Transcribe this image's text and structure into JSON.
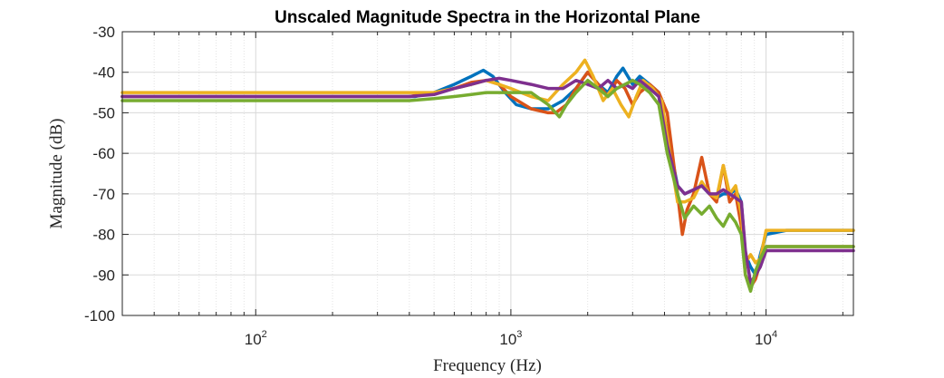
{
  "chart_data": {
    "type": "line",
    "title": "Unscaled Magnitude Spectra in the Horizontal Plane",
    "xlabel": "Frequency (Hz)",
    "ylabel": "Magnitude (dB)",
    "xscale": "log",
    "xlim": [
      30,
      22000
    ],
    "ylim": [
      -100,
      -30
    ],
    "grid": true,
    "minor_grid": true,
    "yticks": [
      -30,
      -40,
      -50,
      -60,
      -70,
      -80,
      -90,
      -100
    ],
    "ytick_labels": [
      "-30",
      "-40",
      "-50",
      "-60",
      "-70",
      "-80",
      "-90",
      "-100"
    ],
    "xticks": [
      {
        "value": 100,
        "base": "10",
        "exp": "2"
      },
      {
        "value": 1000,
        "base": "10",
        "exp": "3"
      },
      {
        "value": 10000,
        "base": "10",
        "exp": "4"
      }
    ],
    "series": [
      {
        "color": "#0072BD",
        "x": [
          30,
          300,
          420,
          500,
          600,
          700,
          780,
          850,
          950,
          1050,
          1200,
          1400,
          1600,
          1800,
          2000,
          2200,
          2400,
          2600,
          2750,
          3000,
          3200,
          3500,
          3800,
          4100,
          4500,
          4800,
          5200,
          5600,
          6000,
          6400,
          6800,
          7200,
          7600,
          8000,
          8300,
          8700,
          9100,
          9500,
          10000,
          12000,
          22000
        ],
        "y": [
          -46,
          -46,
          -46,
          -45,
          -43,
          -41,
          -39.5,
          -41,
          -45,
          -48,
          -49,
          -49,
          -47,
          -44,
          -40,
          -43,
          -45,
          -41,
          -39,
          -43,
          -41,
          -43,
          -45,
          -55,
          -68,
          -70,
          -69,
          -68,
          -70,
          -71,
          -70,
          -70,
          -69,
          -72,
          -85,
          -88,
          -90,
          -85,
          -80,
          -79,
          -79
        ]
      },
      {
        "color": "#D95319",
        "x": [
          30,
          400,
          500,
          600,
          700,
          800,
          900,
          1000,
          1200,
          1400,
          1500,
          1650,
          1800,
          2000,
          2200,
          2400,
          2600,
          2800,
          3000,
          3200,
          3500,
          3800,
          4100,
          4500,
          4700,
          4900,
          5200,
          5600,
          6000,
          6400,
          6800,
          7200,
          7600,
          8000,
          8300,
          8700,
          9100,
          9500,
          10000,
          12000,
          22000
        ],
        "y": [
          -46,
          -46,
          -45,
          -44,
          -42.5,
          -42,
          -43,
          -46,
          -49,
          -50,
          -50,
          -48,
          -44,
          -40,
          -43,
          -46,
          -42,
          -44,
          -48,
          -45,
          -43,
          -45,
          -50,
          -70,
          -80,
          -74,
          -70,
          -61,
          -70,
          -72,
          -63,
          -72,
          -70,
          -78,
          -90,
          -93,
          -91,
          -87,
          -83,
          -83,
          -83
        ]
      },
      {
        "color": "#EDB120",
        "x": [
          30,
          400,
          500,
          600,
          700,
          800,
          900,
          1000,
          1200,
          1400,
          1600,
          1800,
          1950,
          2100,
          2300,
          2500,
          2700,
          2900,
          3100,
          3300,
          3600,
          3900,
          4200,
          4500,
          4800,
          5200,
          5600,
          6000,
          6400,
          6800,
          7200,
          7600,
          8000,
          8300,
          8700,
          9100,
          9500,
          10000,
          12000,
          22000
        ],
        "y": [
          -45,
          -45,
          -45,
          -44,
          -43,
          -42,
          -43,
          -44,
          -46,
          -47,
          -43,
          -40,
          -37,
          -41,
          -47,
          -44,
          -48,
          -51,
          -46,
          -42,
          -44,
          -47,
          -60,
          -72,
          -72,
          -71,
          -67,
          -70,
          -71,
          -63,
          -70,
          -68,
          -75,
          -87,
          -85,
          -87,
          -86,
          -79,
          -79,
          -79
        ]
      },
      {
        "color": "#7E2F8E",
        "x": [
          30,
          400,
          500,
          600,
          700,
          800,
          900,
          1000,
          1200,
          1400,
          1600,
          1800,
          2000,
          2200,
          2400,
          2600,
          2800,
          3000,
          3200,
          3500,
          3800,
          4100,
          4500,
          4800,
          5200,
          5600,
          6000,
          6400,
          6800,
          7200,
          7600,
          8000,
          8300,
          8700,
          9100,
          9500,
          10000,
          12000,
          22000
        ],
        "y": [
          -46,
          -46,
          -45.5,
          -44,
          -43,
          -42,
          -41.5,
          -42,
          -43,
          -44,
          -44,
          -42,
          -43,
          -44,
          -42,
          -44,
          -43,
          -44,
          -42,
          -44,
          -46,
          -58,
          -68,
          -70,
          -69,
          -68,
          -70,
          -70,
          -69,
          -70,
          -71,
          -72,
          -84,
          -92,
          -90,
          -88,
          -84,
          -84,
          -84
        ]
      },
      {
        "color": "#77AC30",
        "x": [
          30,
          400,
          500,
          600,
          700,
          800,
          900,
          1000,
          1200,
          1400,
          1550,
          1650,
          1800,
          2000,
          2200,
          2400,
          2600,
          2800,
          3000,
          3200,
          3500,
          3800,
          4100,
          4500,
          4800,
          5200,
          5600,
          6000,
          6400,
          6800,
          7200,
          7600,
          8000,
          8300,
          8700,
          9100,
          9500,
          10000,
          12000,
          22000
        ],
        "y": [
          -47,
          -47,
          -46.5,
          -46,
          -45.5,
          -45,
          -45,
          -45,
          -45,
          -48,
          -51,
          -48,
          -45,
          -42,
          -44,
          -46,
          -44,
          -43,
          -42,
          -43,
          -45,
          -48,
          -60,
          -70,
          -76,
          -73,
          -75,
          -73,
          -76,
          -78,
          -75,
          -77,
          -80,
          -90,
          -94,
          -89,
          -86,
          -83,
          -83,
          -83
        ]
      }
    ]
  }
}
